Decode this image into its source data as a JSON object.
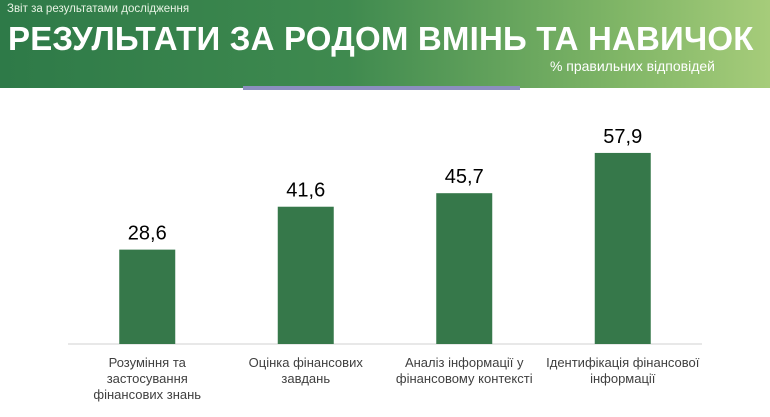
{
  "header": {
    "report_label": "Звіт за результатами дослідження",
    "title": "РЕЗУЛЬТАТИ ЗА РОДОМ ВМІНЬ ТА НАВИЧОК",
    "subtitle": "% правильних відповідей"
  },
  "colors": {
    "bar": "#36784a",
    "header_start": "#2e7a48",
    "header_end": "#a6cc7a",
    "divider": "#8b8fbf"
  },
  "chart_data": {
    "type": "bar",
    "categories": [
      [
        "Розуміння та",
        "застосування",
        "фінансових знань"
      ],
      [
        "Оцінка фінансових",
        "завдань"
      ],
      [
        "Аналіз інформації у",
        "фінансовому контексті"
      ],
      [
        "Ідентифікація фінансової",
        "інформації"
      ]
    ],
    "values": [
      28.6,
      41.6,
      45.7,
      57.9
    ],
    "data_labels": [
      "28,6",
      "41,6",
      "45,7",
      "57,9"
    ],
    "title": "РЕЗУЛЬТАТИ ЗА РОДОМ ВМІНЬ ТА НАВИЧОК",
    "ylabel": "% правильних відповідей",
    "ylim": [
      0,
      70
    ],
    "grid": false,
    "legend": "none"
  }
}
